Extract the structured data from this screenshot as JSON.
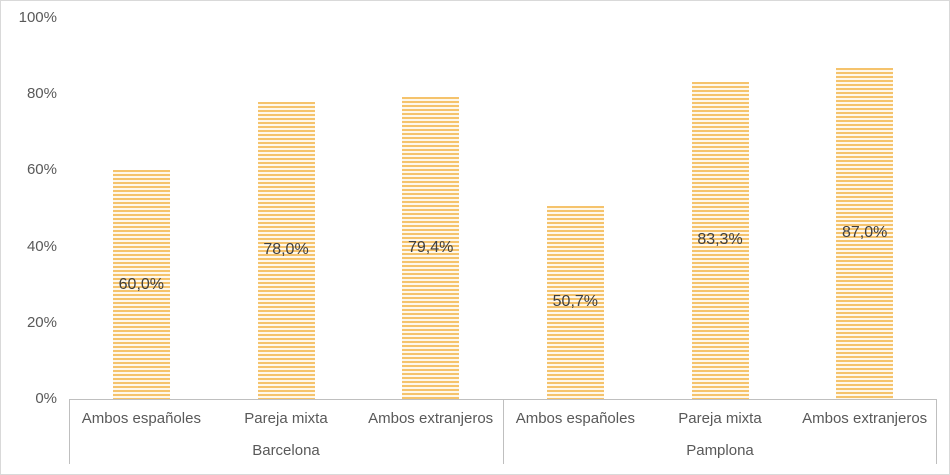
{
  "chart_data": {
    "type": "bar",
    "title": "",
    "xlabel": "",
    "ylabel": "",
    "ylim": [
      0,
      100
    ],
    "grid": false,
    "legend": null,
    "value_format": "percent_decimal_comma",
    "yticks": [
      {
        "label": "100%",
        "value": 100
      },
      {
        "label": "80%",
        "value": 80
      },
      {
        "label": "60%",
        "value": 60
      },
      {
        "label": "40%",
        "value": 40
      },
      {
        "label": "20%",
        "value": 20
      },
      {
        "label": "0%",
        "value": 0
      }
    ],
    "groups": [
      {
        "label": "Barcelona",
        "bars": [
          {
            "category": "Ambos españoles",
            "value": 60.0,
            "label": "60,0%"
          },
          {
            "category": "Pareja mixta",
            "value": 78.0,
            "label": "78,0%"
          },
          {
            "category": "Ambos extranjeros",
            "value": 79.4,
            "label": "79,4%"
          }
        ]
      },
      {
        "label": "Pamplona",
        "bars": [
          {
            "category": "Ambos españoles",
            "value": 50.7,
            "label": "50,7%"
          },
          {
            "category": "Pareja mixta",
            "value": 83.3,
            "label": "83,3%"
          },
          {
            "category": "Ambos extranjeros",
            "value": 87.0,
            "label": "87,0%"
          }
        ]
      }
    ]
  },
  "style": {
    "bar_stripe_color": "#f5c36c",
    "bar_stripe_bg": "#fef8ec",
    "axis_line_color": "#bfbfbf",
    "tick_text_color": "#595959",
    "data_label_color": "#3f3f3f",
    "outer_border_color": "#d9d9d9"
  }
}
